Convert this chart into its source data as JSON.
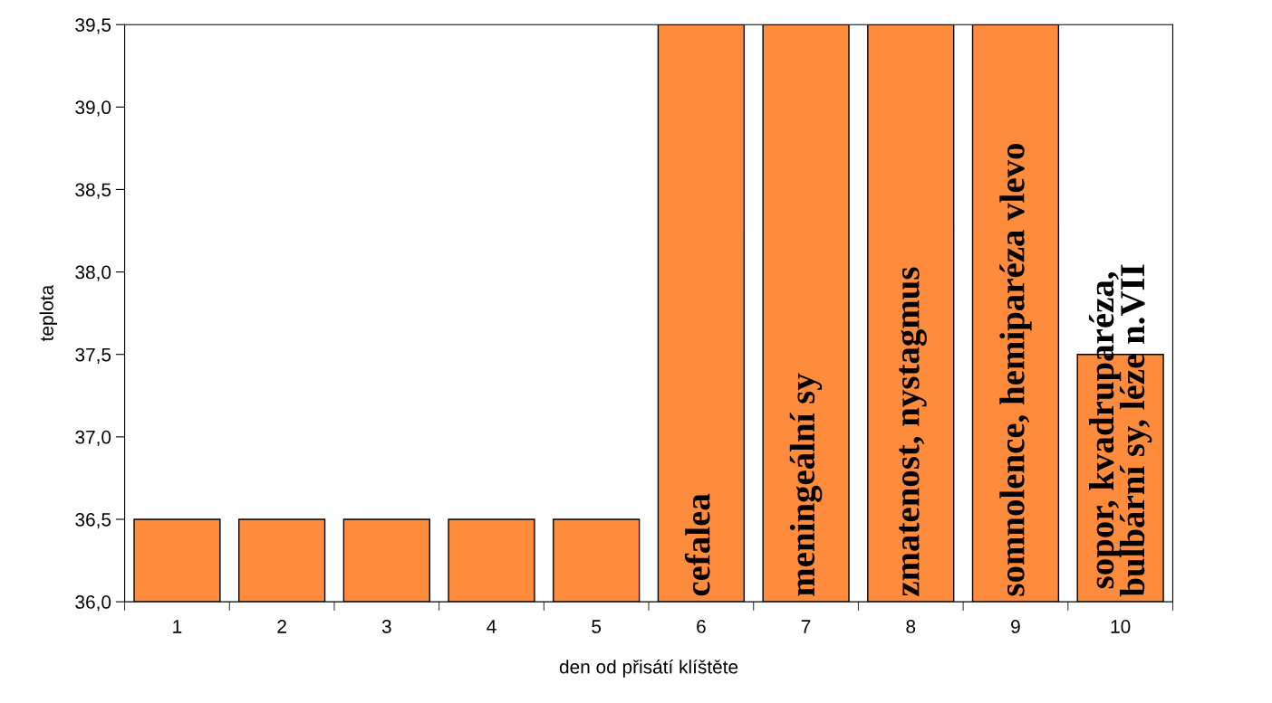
{
  "chart_data": {
    "type": "bar",
    "xlabel": "den od přisátí klíštěte",
    "ylabel": "teplota",
    "categories": [
      "1",
      "2",
      "3",
      "4",
      "5",
      "6",
      "7",
      "8",
      "9",
      "10"
    ],
    "values": [
      36.5,
      36.5,
      36.5,
      36.5,
      36.5,
      39.5,
      39.5,
      39.5,
      39.5,
      37.5
    ],
    "color": "#ff8c3c",
    "ylim": [
      36.0,
      39.5
    ],
    "yticks": [
      {
        "value": 36.0,
        "label": "36,0"
      },
      {
        "value": 36.5,
        "label": "36,5"
      },
      {
        "value": 37.0,
        "label": "37,0"
      },
      {
        "value": 37.5,
        "label": "37,5"
      },
      {
        "value": 38.0,
        "label": "38,0"
      },
      {
        "value": 38.5,
        "label": "38,5"
      },
      {
        "value": 39.0,
        "label": "39,0"
      },
      {
        "value": 39.5,
        "label": "39,5"
      }
    ],
    "annotations": [
      "cefalea",
      "meningeální sy",
      "zmatenost, nystagmus",
      "somnolence, hemiparéza vlevo",
      "sopor, kvadruparéza,\nbulbární sy, léze n.VII"
    ],
    "grid": false,
    "legend": false
  }
}
